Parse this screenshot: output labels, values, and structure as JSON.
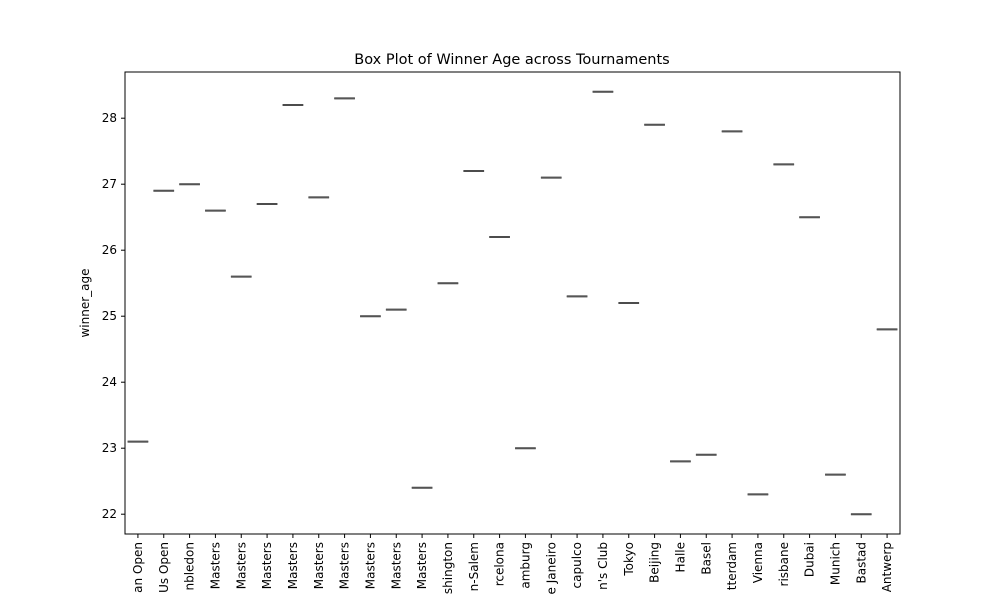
{
  "chart_data": {
    "type": "box",
    "title": "Box Plot of Winner Age across Tournaments",
    "xlabel": "",
    "ylabel": "winner_age",
    "ylim": [
      21.7,
      28.7
    ],
    "yticks": [
      22,
      23,
      24,
      25,
      26,
      27,
      28
    ],
    "grid": false,
    "categories": [
      "an Open",
      "Us Open",
      "nbledon",
      "Masters",
      "Masters",
      "Masters",
      "Masters",
      "Masters",
      "Masters",
      "Masters",
      "Masters",
      "Masters",
      "shington",
      "n-Salem",
      "rcelona",
      "amburg",
      "e Janeiro",
      "capulco",
      "n's Club",
      "Tokyo",
      "Beijing",
      "Halle",
      "Basel",
      "tterdam",
      "Vienna",
      "risbane",
      "Dubai",
      "Munich",
      "Bastad",
      "Antwerp"
    ],
    "values": [
      23.1,
      26.9,
      27.0,
      26.6,
      25.6,
      26.7,
      28.2,
      26.8,
      28.3,
      25.0,
      25.1,
      22.4,
      25.5,
      27.2,
      26.2,
      23.0,
      27.1,
      25.3,
      28.4,
      25.2,
      27.9,
      22.8,
      22.9,
      27.8,
      22.3,
      27.3,
      26.5,
      22.6,
      22.0,
      24.8
    ],
    "colors": {
      "box_line": "#3f3f3f",
      "axis": "#000000",
      "background": "#ffffff"
    }
  }
}
